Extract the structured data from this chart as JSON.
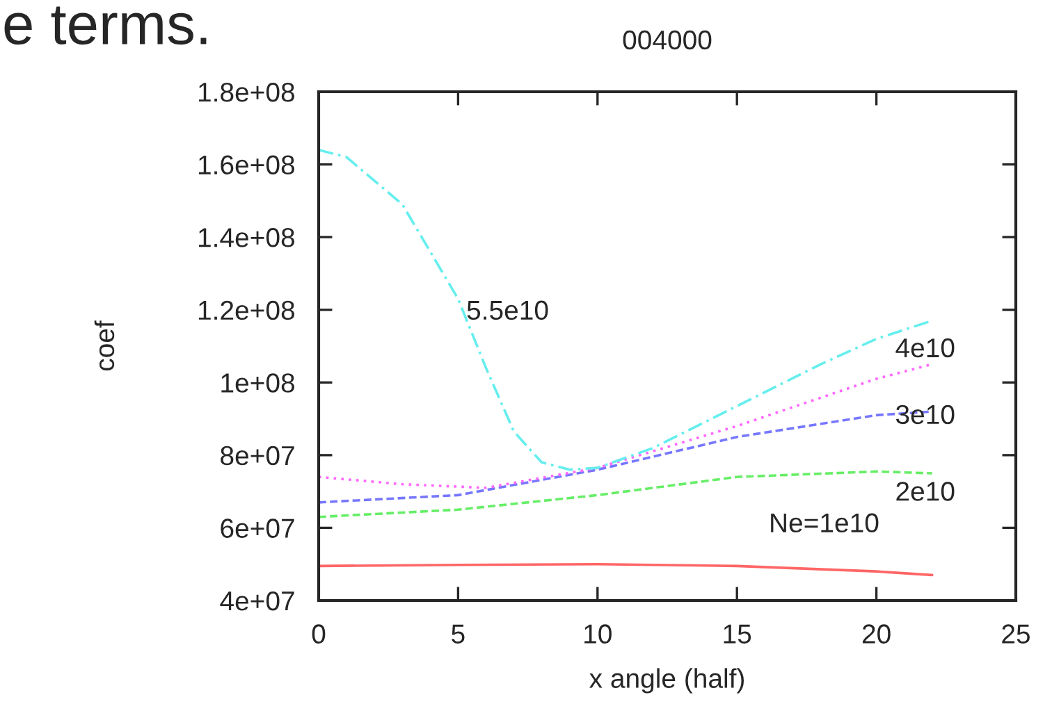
{
  "chart_data": {
    "type": "line",
    "title": "004000",
    "xlabel": "x angle (half)",
    "ylabel": "coef",
    "xlim": [
      0,
      25
    ],
    "xticks": [
      0,
      5,
      10,
      15,
      20,
      25
    ],
    "ylim": [
      40000000,
      180000000
    ],
    "yticks": [
      {
        "value": 40000000,
        "label": "4e+07"
      },
      {
        "value": 60000000,
        "label": "6e+07"
      },
      {
        "value": 80000000,
        "label": "8e+07"
      },
      {
        "value": 100000000,
        "label": "1e+08"
      },
      {
        "value": 120000000,
        "label": "1.2e+08"
      },
      {
        "value": 140000000,
        "label": "1.4e+08"
      },
      {
        "value": 160000000,
        "label": "1.6e+08"
      },
      {
        "value": 180000000,
        "label": "1.8e+08"
      }
    ],
    "grid": false,
    "legend": false,
    "series": [
      {
        "name": "Ne=1e10",
        "color": "#ff6666",
        "line_style": "solid",
        "x": [
          0,
          5,
          10,
          15,
          20,
          22
        ],
        "values": [
          49500000,
          49800000,
          50000000,
          49500000,
          48000000,
          47000000
        ]
      },
      {
        "name": "2e10",
        "color": "#66ee66",
        "line_style": "dashed",
        "x": [
          0,
          5,
          10,
          15,
          20,
          22
        ],
        "values": [
          63000000,
          65000000,
          69000000,
          74000000,
          75500000,
          75000000
        ]
      },
      {
        "name": "3e10",
        "color": "#7777ff",
        "line_style": "dashed",
        "x": [
          0,
          5,
          10,
          15,
          20,
          22
        ],
        "values": [
          67000000,
          69000000,
          76000000,
          85000000,
          91000000,
          92000000
        ]
      },
      {
        "name": "4e10",
        "color": "#ff66ff",
        "line_style": "dotted",
        "x": [
          0,
          3,
          6,
          10,
          15,
          20,
          22
        ],
        "values": [
          74000000,
          72000000,
          71000000,
          76500000,
          88000000,
          101000000,
          105000000
        ]
      },
      {
        "name": "5.5e10",
        "color": "#66eeee",
        "line_style": "dashdot",
        "x": [
          0,
          1,
          3,
          5,
          6,
          7,
          8,
          9,
          10,
          12,
          15,
          18,
          20,
          22
        ],
        "values": [
          164000000,
          162000000,
          149000000,
          123000000,
          104000000,
          86500000,
          78000000,
          76000000,
          76500000,
          82000000,
          93500000,
          105000000,
          112000000,
          117000000
        ]
      }
    ],
    "annotations": [
      "e terms."
    ]
  }
}
